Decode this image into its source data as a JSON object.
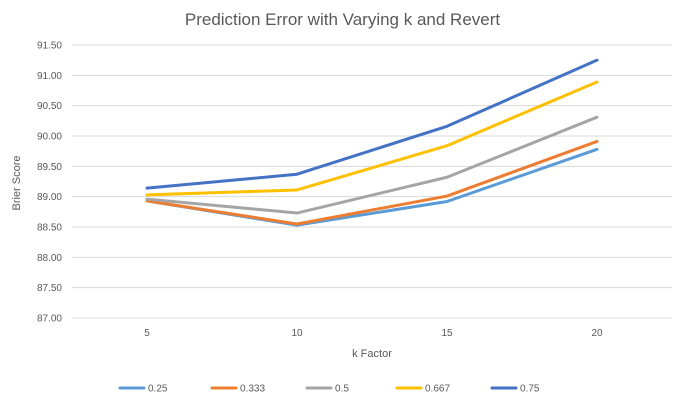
{
  "chart_data": {
    "type": "line",
    "title": "Prediction Error with Varying k and Revert",
    "xlabel": "k Factor",
    "ylabel": "Brier Score",
    "categories": [
      "5",
      "10",
      "15",
      "20"
    ],
    "ylim": [
      87.0,
      91.5
    ],
    "ytick_step": 0.5,
    "yticks": [
      "87.00",
      "87.50",
      "88.00",
      "88.50",
      "89.00",
      "89.50",
      "90.00",
      "90.50",
      "91.00",
      "91.50"
    ],
    "grid": true,
    "legend_position": "bottom",
    "series": [
      {
        "name": "0.25",
        "color": "#5B9BD5",
        "values": [
          88.93,
          88.53,
          88.92,
          89.78
        ]
      },
      {
        "name": "0.333",
        "color": "#ED7D31",
        "values": [
          88.93,
          88.55,
          89.01,
          89.91
        ]
      },
      {
        "name": "0.5",
        "color": "#A5A5A5",
        "values": [
          88.96,
          88.73,
          89.32,
          90.31
        ]
      },
      {
        "name": "0.667",
        "color": "#FFC000",
        "values": [
          89.03,
          89.11,
          89.84,
          90.89
        ]
      },
      {
        "name": "0.75",
        "color": "#4472C4",
        "values": [
          89.14,
          89.37,
          90.16,
          91.25
        ]
      }
    ]
  }
}
